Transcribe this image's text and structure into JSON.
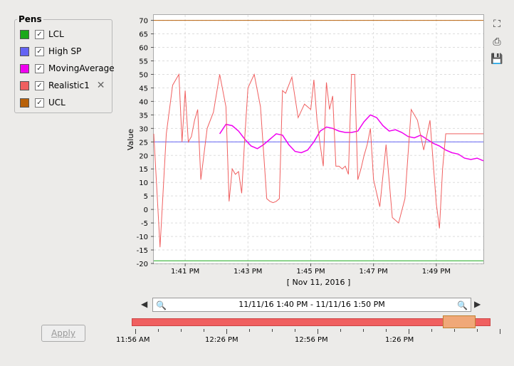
{
  "pens": {
    "title": "Pens",
    "items": [
      {
        "label": "LCL",
        "color": "#1aa81a",
        "checked": true
      },
      {
        "label": "High SP",
        "color": "#6464f4",
        "checked": true
      },
      {
        "label": "MovingAverage",
        "color": "#f000f0",
        "checked": true
      },
      {
        "label": "Realistic1",
        "color": "#f06060",
        "checked": true,
        "removable": true
      },
      {
        "label": "UCL",
        "color": "#b8610a",
        "checked": true
      }
    ]
  },
  "toolbar": {
    "reset_icon": "reset-zoom-icon",
    "print_icon": "print-icon",
    "save_icon": "save-icon"
  },
  "range": {
    "text": "11/11/16 1:40 PM - 11/11/16 1:50 PM"
  },
  "apply_label": "Apply",
  "timeline": {
    "labels": [
      "11:56 AM",
      "12:26 PM",
      "12:56 PM",
      "1:26 PM"
    ]
  },
  "chart_data": {
    "type": "line",
    "ylabel": "Value",
    "xlabel": "[ Nov 11, 2016 ]",
    "ylim": [
      -20,
      72
    ],
    "yticks": [
      -20,
      -15,
      -10,
      -5,
      0,
      5,
      10,
      15,
      20,
      25,
      30,
      35,
      40,
      45,
      50,
      55,
      60,
      65,
      70
    ],
    "xticks": [
      "1:41 PM",
      "1:43 PM",
      "1:45 PM",
      "1:47 PM",
      "1:49 PM"
    ],
    "xtick_minutes": [
      1,
      3,
      5,
      7,
      9
    ],
    "xlim_minutes": [
      0,
      10.5
    ],
    "grid": true,
    "series": [
      {
        "name": "LCL",
        "color": "#1aa81a",
        "x": [
          0,
          10.5
        ],
        "values": [
          -19,
          -19
        ]
      },
      {
        "name": "High SP",
        "color": "#6464f4",
        "x": [
          0,
          10.5
        ],
        "values": [
          25,
          25
        ]
      },
      {
        "name": "UCL",
        "color": "#b8610a",
        "x": [
          0,
          10.5
        ],
        "values": [
          70,
          70
        ]
      },
      {
        "name": "MovingAverage",
        "color": "#f000f0",
        "x": [
          2.1,
          2.3,
          2.5,
          2.7,
          2.9,
          3.1,
          3.3,
          3.5,
          3.7,
          3.9,
          4.1,
          4.3,
          4.5,
          4.7,
          4.9,
          5.1,
          5.3,
          5.5,
          5.7,
          5.9,
          6.1,
          6.3,
          6.5,
          6.7,
          6.9,
          7.1,
          7.3,
          7.5,
          7.7,
          7.9,
          8.1,
          8.3,
          8.5,
          8.7,
          8.9,
          9.1,
          9.3,
          9.5,
          9.7,
          9.9,
          10.1,
          10.3,
          10.5
        ],
        "values": [
          28,
          31.5,
          31,
          29,
          26,
          23.5,
          22.5,
          24,
          26,
          28,
          27.5,
          24,
          21.5,
          21,
          22,
          25,
          29,
          30.5,
          30,
          29,
          28.5,
          28.5,
          29,
          32.5,
          35,
          34,
          31,
          29,
          29.5,
          28.5,
          27,
          26.5,
          27.5,
          26,
          24.5,
          23.5,
          22,
          21,
          20.5,
          19,
          18.5,
          19,
          18
        ]
      },
      {
        "name": "Realistic1",
        "color": "#f06060",
        "x": [
          0,
          0.2,
          0.4,
          0.6,
          0.8,
          0.9,
          1.0,
          1.1,
          1.2,
          1.3,
          1.4,
          1.5,
          1.7,
          1.9,
          2.1,
          2.3,
          2.4,
          2.5,
          2.6,
          2.7,
          2.8,
          2.9,
          3.0,
          3.2,
          3.4,
          3.6,
          3.7,
          3.8,
          3.9,
          4.0,
          4.1,
          4.2,
          4.4,
          4.6,
          4.8,
          5.0,
          5.1,
          5.2,
          5.3,
          5.4,
          5.5,
          5.6,
          5.7,
          5.8,
          5.9,
          6.0,
          6.1,
          6.2,
          6.3,
          6.4,
          6.5,
          6.6,
          6.7,
          6.8,
          6.9,
          7.0,
          7.2,
          7.4,
          7.6,
          7.8,
          8.0,
          8.2,
          8.4,
          8.6,
          8.8,
          9.0,
          9.1,
          9.2,
          9.3,
          9.4,
          9.5,
          9.6,
          9.8,
          9.9,
          10.0,
          10.1,
          10.2,
          10.3,
          10.4,
          10.5
        ],
        "values": [
          28,
          -14,
          28,
          46,
          50,
          25,
          44,
          25,
          27,
          33,
          37,
          11,
          30,
          36,
          50,
          38,
          3,
          15,
          13,
          14,
          6,
          27,
          45,
          50,
          38,
          4,
          3,
          2.5,
          3,
          4,
          44,
          43,
          49,
          34,
          39,
          37,
          48,
          33,
          24,
          16,
          47,
          37,
          42,
          16,
          16,
          15,
          16,
          13,
          50,
          50,
          11,
          15,
          20,
          24,
          30,
          11,
          1,
          24,
          -3,
          -5,
          4,
          37,
          33,
          22,
          33,
          2,
          -7,
          15,
          28,
          28,
          28,
          28,
          28,
          28,
          28,
          28,
          28,
          28,
          28,
          28
        ]
      }
    ]
  }
}
